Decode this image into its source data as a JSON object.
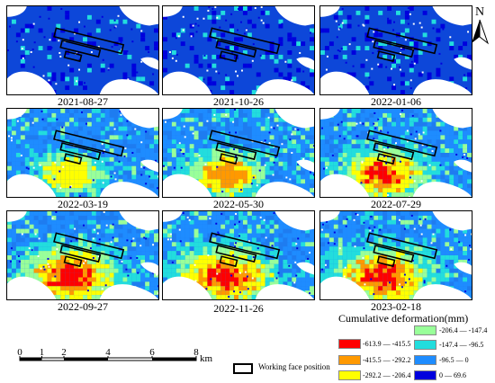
{
  "panels": [
    {
      "date": "2021-08-27",
      "stage": 0
    },
    {
      "date": "2021-10-26",
      "stage": 0
    },
    {
      "date": "2022-01-06",
      "stage": 0
    },
    {
      "date": "2022-03-19",
      "stage": 1
    },
    {
      "date": "2022-05-30",
      "stage": 2
    },
    {
      "date": "2022-07-29",
      "stage": 3
    },
    {
      "date": "2022-09-27",
      "stage": 4
    },
    {
      "date": "2022-11-26",
      "stage": 4
    },
    {
      "date": "2023-02-18",
      "stage": 4
    }
  ],
  "north_label": "N",
  "legend": {
    "title": "Cumulative deformation(mm)",
    "classes": [
      {
        "label": "-613.9 — -415.5",
        "color": "#ff0000"
      },
      {
        "label": "-415.5 — -292.2",
        "color": "#ff9900"
      },
      {
        "label": "-292.2 — -206.4",
        "color": "#ffff00"
      },
      {
        "label": "-206.4 — -147.4",
        "color": "#99ff99"
      },
      {
        "label": "-147.4 — -96.5",
        "color": "#22dddd"
      },
      {
        "label": "-96.5 — 0",
        "color": "#1e8cff"
      },
      {
        "label": "0 — 69.6",
        "color": "#0000dd"
      }
    ],
    "working_face": "Working face position"
  },
  "scale": {
    "ticks": [
      "0",
      "1",
      "2",
      "4",
      "6",
      "8"
    ],
    "tick_values": [
      0,
      1,
      2,
      4,
      6,
      8
    ],
    "unit": "km"
  },
  "colors": {
    "background_blue": "#0d47d9",
    "water": "#ffffff"
  }
}
